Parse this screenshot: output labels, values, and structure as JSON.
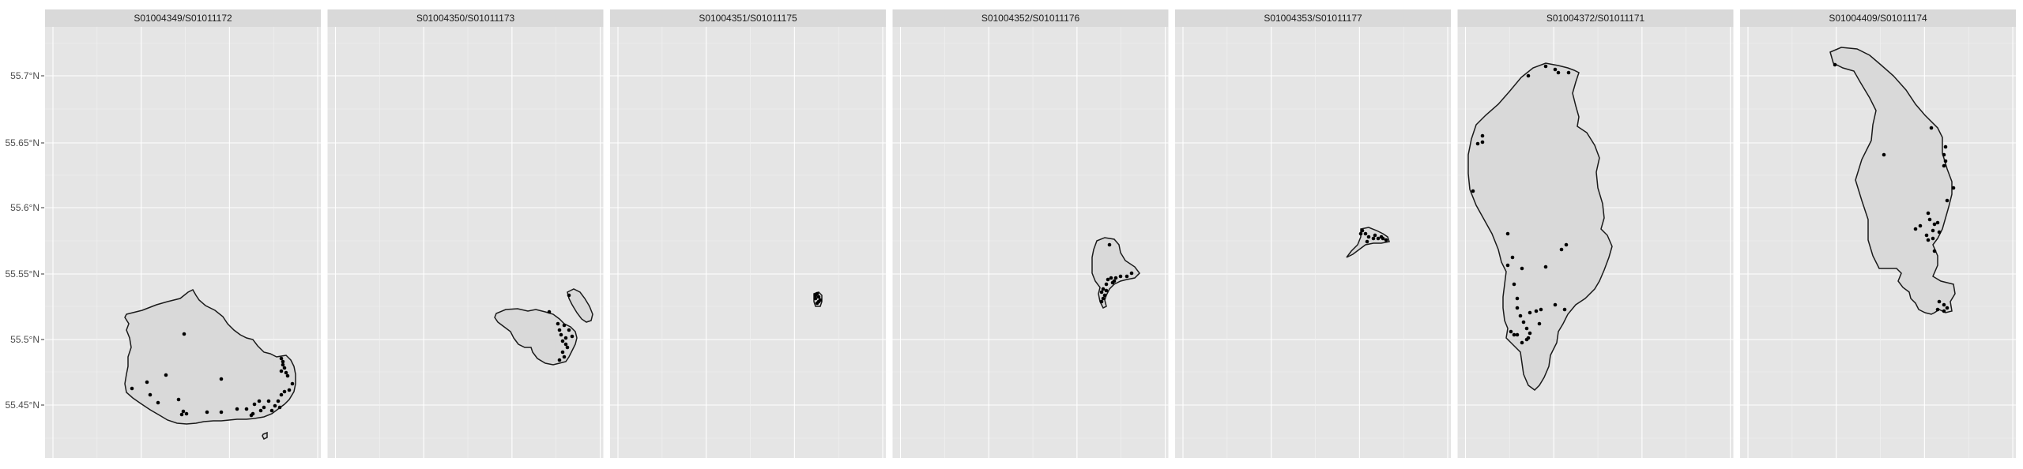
{
  "figure": {
    "y_axis": {
      "ticks": [
        {
          "label": "55.7°N",
          "lat": 55.7
        },
        {
          "label": "55.65°N",
          "lat": 55.65
        },
        {
          "label": "55.6°N",
          "lat": 55.6
        },
        {
          "label": "55.55°N",
          "lat": 55.55
        },
        {
          "label": "55.5°N",
          "lat": 55.5
        },
        {
          "label": "55.45°N",
          "lat": 55.45
        }
      ]
    },
    "colors": {
      "panel_bg": "#e5e5e5",
      "grid_major": "#ffffff",
      "strip_bg": "#d9d9d9",
      "land_fill": "#d9d9d9",
      "outline": "#1a1a1a",
      "points": "#000000"
    },
    "panels": [
      {
        "title": "S01004349/S01011172"
      },
      {
        "title": "S01004350/S01011173"
      },
      {
        "title": "S01004351/S01011175"
      },
      {
        "title": "S01004352/S01011176"
      },
      {
        "title": "S01004353/S01011177"
      },
      {
        "title": "S01004372/S01011171"
      },
      {
        "title": "S01004409/S01011174"
      }
    ]
  }
}
